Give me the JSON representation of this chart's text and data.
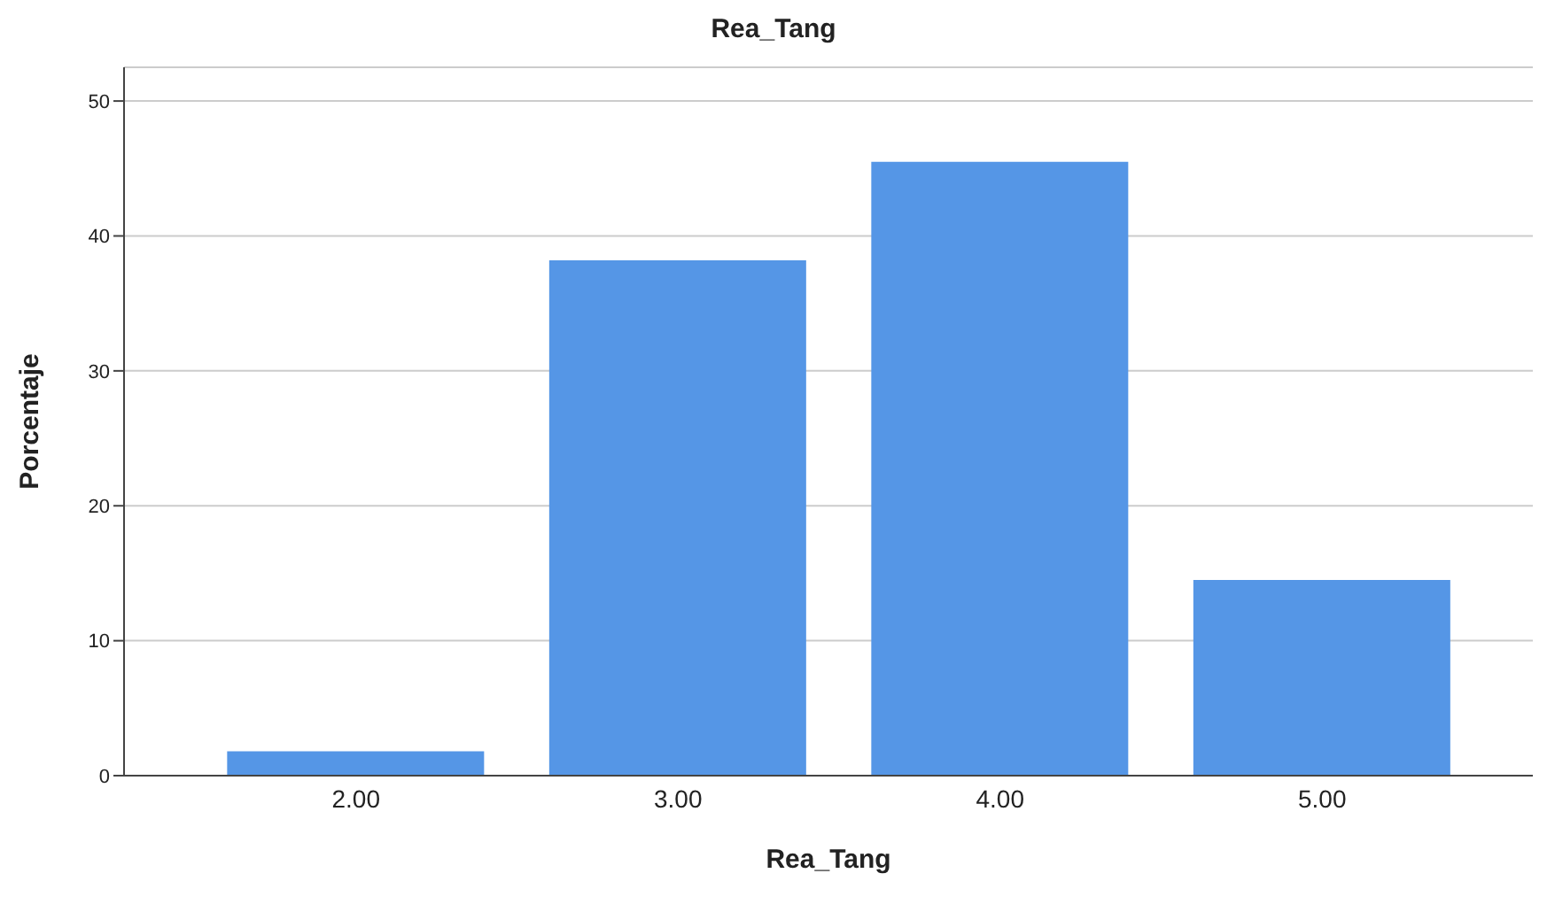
{
  "chart_data": {
    "type": "bar",
    "title": "Rea_Tang",
    "xlabel": "Rea_Tang",
    "ylabel": "Porcentaje",
    "categories": [
      "2.00",
      "3.00",
      "4.00",
      "5.00"
    ],
    "values": [
      1.8,
      38.2,
      45.5,
      14.5
    ],
    "color": "#5596e6",
    "ylim": [
      0,
      52.5
    ],
    "yticks": [
      0,
      10,
      20,
      30,
      40,
      50
    ],
    "grid": "y"
  }
}
